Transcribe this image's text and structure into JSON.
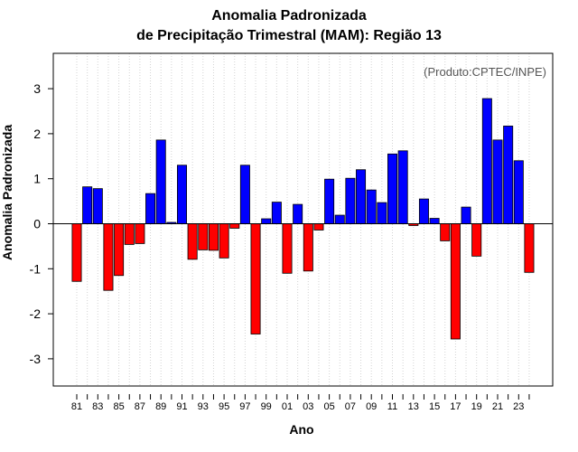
{
  "chart_data": {
    "type": "bar",
    "title": "Anomalia Padronizada",
    "subtitle": "de Precipitação Trimestral (MAM): Região 13",
    "credit": "(Produto:CPTEC/INPE)",
    "xlabel": "Ano",
    "ylabel": "Anomalia Padronizada",
    "ylim": [
      -3.6,
      3.8
    ],
    "yticks": [
      "-3",
      "-2",
      "-1",
      "0",
      "1",
      "2",
      "3"
    ],
    "categories": [
      "81",
      "82",
      "83",
      "84",
      "85",
      "86",
      "87",
      "88",
      "89",
      "90",
      "91",
      "92",
      "93",
      "94",
      "95",
      "96",
      "97",
      "98",
      "99",
      "00",
      "01",
      "02",
      "03",
      "04",
      "05",
      "06",
      "07",
      "08",
      "09",
      "10",
      "11",
      "12",
      "13",
      "14",
      "15",
      "16",
      "17",
      "18",
      "19",
      "20",
      "21",
      "22",
      "23",
      "24"
    ],
    "xtick_labels": [
      "81",
      "83",
      "85",
      "87",
      "89",
      "91",
      "93",
      "95",
      "97",
      "99",
      "01",
      "03",
      "05",
      "07",
      "09",
      "11",
      "13",
      "15",
      "17",
      "19",
      "21",
      "23"
    ],
    "values": [
      -1.28,
      0.82,
      0.78,
      -1.48,
      -1.15,
      -0.46,
      -0.44,
      0.67,
      1.86,
      0.03,
      1.3,
      -0.79,
      -0.58,
      -0.59,
      -0.76,
      -0.1,
      1.3,
      -2.45,
      0.11,
      0.48,
      -1.1,
      0.43,
      -1.05,
      -0.14,
      0.99,
      0.19,
      1.01,
      1.2,
      0.75,
      0.47,
      1.55,
      1.62,
      -0.04,
      0.55,
      0.12,
      -0.38,
      -2.56,
      0.37,
      -0.72,
      2.78,
      1.86,
      2.17,
      1.4,
      -1.08
    ],
    "colors": {
      "positive": "#0000ff",
      "negative": "#ff0000",
      "border": "#000000",
      "grid": "#d3d3d3"
    }
  }
}
